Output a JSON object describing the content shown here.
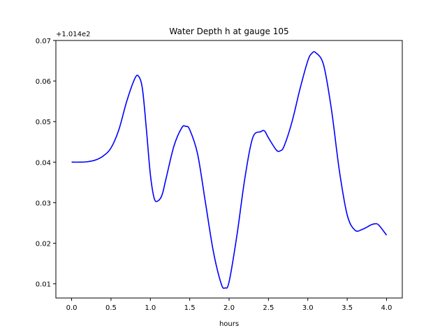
{
  "chart_data": {
    "type": "line",
    "title": "Water Depth h at gauge 105",
    "xlabel": "hours",
    "ylabel": "",
    "offset_label": "+1.014e2",
    "xlim": [
      -0.2,
      4.2
    ],
    "ylim": [
      0.0065,
      0.07
    ],
    "xticks": [
      0.0,
      0.5,
      1.0,
      1.5,
      2.0,
      2.5,
      3.0,
      3.5,
      4.0
    ],
    "xtick_labels": [
      "0.0",
      "0.5",
      "1.0",
      "1.5",
      "2.0",
      "2.5",
      "3.0",
      "3.5",
      "4.0"
    ],
    "yticks": [
      0.01,
      0.02,
      0.03,
      0.04,
      0.05,
      0.06,
      0.07
    ],
    "ytick_labels": [
      "0.01",
      "0.02",
      "0.03",
      "0.04",
      "0.05",
      "0.06",
      "0.07"
    ],
    "grid": false,
    "series": [
      {
        "color": "#0000ff",
        "x": [
          0.0,
          0.1,
          0.2,
          0.3,
          0.4,
          0.5,
          0.6,
          0.7,
          0.8,
          0.85,
          0.9,
          0.95,
          1.0,
          1.05,
          1.1,
          1.15,
          1.2,
          1.3,
          1.4,
          1.45,
          1.5,
          1.6,
          1.7,
          1.8,
          1.9,
          1.95,
          2.0,
          2.1,
          2.2,
          2.3,
          2.4,
          2.45,
          2.5,
          2.6,
          2.65,
          2.7,
          2.8,
          2.9,
          3.0,
          3.05,
          3.1,
          3.2,
          3.3,
          3.4,
          3.5,
          3.6,
          3.7,
          3.8,
          3.85,
          3.9,
          4.0
        ],
        "y": [
          0.04,
          0.04,
          0.0401,
          0.0405,
          0.0415,
          0.0435,
          0.048,
          0.055,
          0.0605,
          0.0612,
          0.058,
          0.048,
          0.037,
          0.031,
          0.0305,
          0.032,
          0.036,
          0.044,
          0.0485,
          0.0488,
          0.048,
          0.042,
          0.03,
          0.018,
          0.01,
          0.009,
          0.0105,
          0.022,
          0.036,
          0.046,
          0.0475,
          0.0477,
          0.046,
          0.043,
          0.0428,
          0.044,
          0.05,
          0.058,
          0.065,
          0.0668,
          0.067,
          0.064,
          0.053,
          0.038,
          0.027,
          0.0232,
          0.0235,
          0.0245,
          0.0248,
          0.0245,
          0.022
        ]
      }
    ]
  }
}
